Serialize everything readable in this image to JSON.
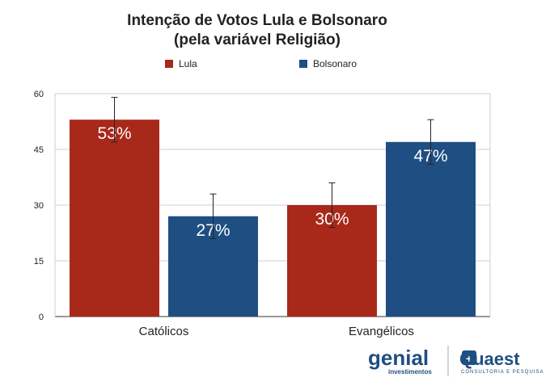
{
  "chart_data": {
    "type": "bar",
    "title": [
      "Intenção de Votos Lula e Bolsonaro",
      "(pela variável Religião)"
    ],
    "categories": [
      "Católicos",
      "Evangélicos"
    ],
    "series": [
      {
        "name": "Lula",
        "values": [
          53,
          30
        ],
        "labels": [
          "53%",
          "30%"
        ],
        "error": [
          6,
          6
        ],
        "color": "#a8281a"
      },
      {
        "name": "Bolsonaro",
        "values": [
          27,
          47
        ],
        "labels": [
          "27%",
          "47%"
        ],
        "error": [
          6,
          6
        ],
        "color": "#1f4e82"
      }
    ],
    "ylim": [
      0,
      60
    ],
    "yticks": [
      0,
      15,
      30,
      45,
      60
    ],
    "grid": true,
    "legend_position": "top"
  },
  "logos": {
    "genial_name": "genial",
    "genial_sub": "investimentos",
    "quaest_name": "Quaest",
    "quaest_sub": "CONSULTORIA E PESQUISA"
  }
}
